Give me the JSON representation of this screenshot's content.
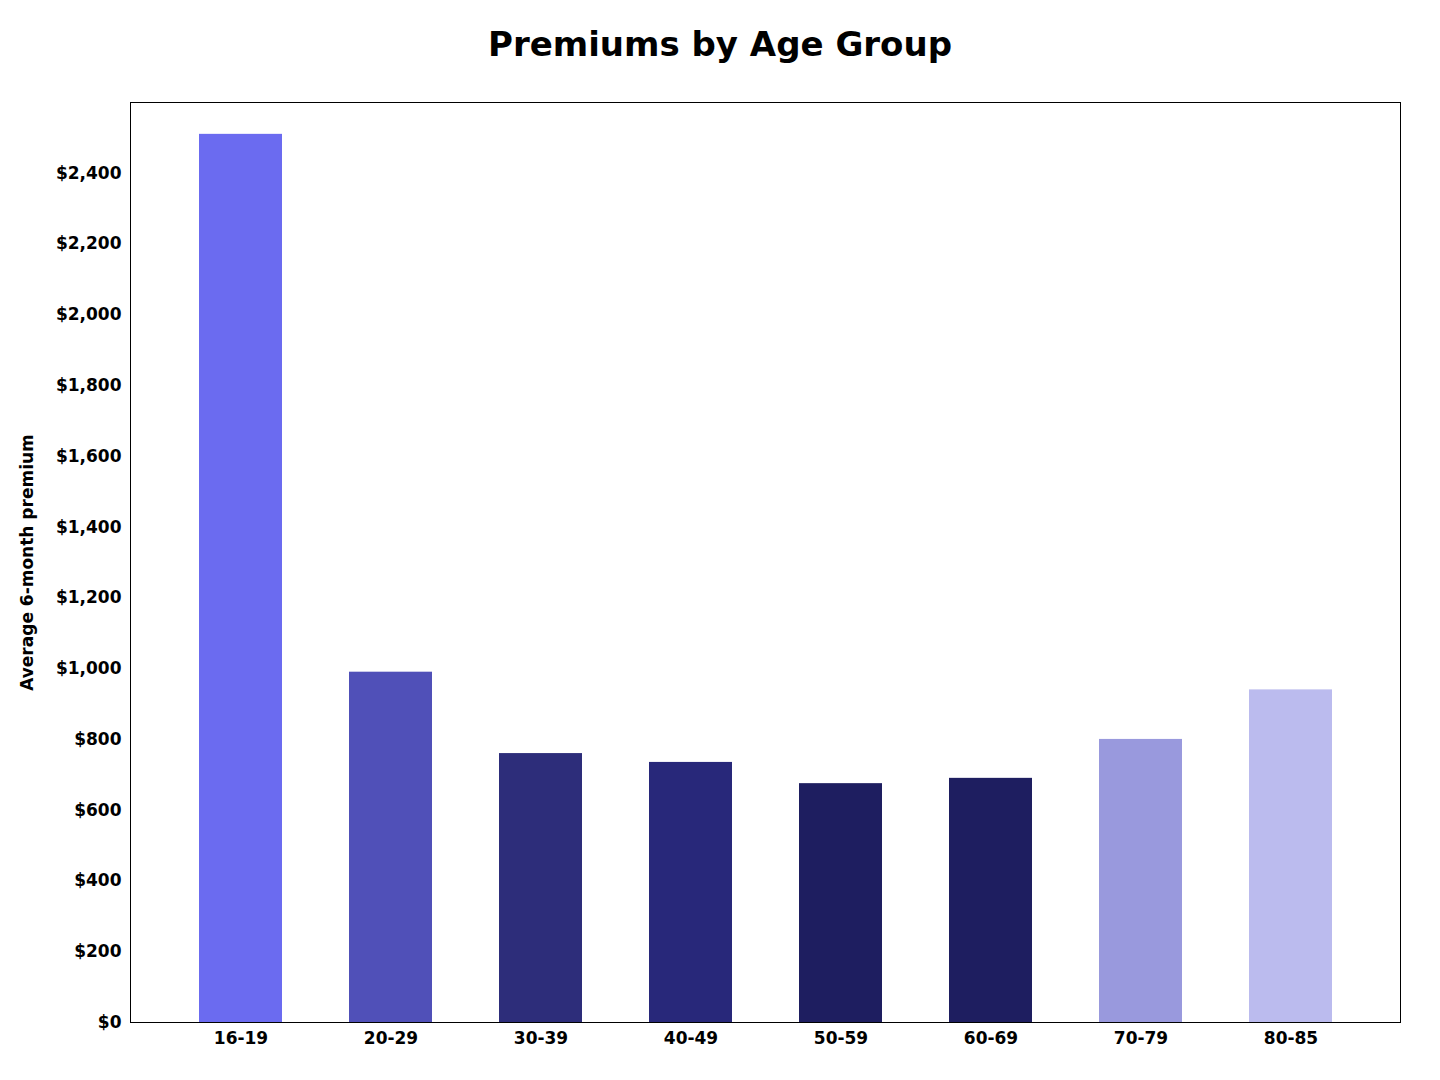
{
  "chart_data": {
    "type": "bar",
    "title": "Premiums by Age Group",
    "categories": [
      "16-19",
      "20-29",
      "30-39",
      "40-49",
      "50-59",
      "60-69",
      "70-79",
      "80-85"
    ],
    "values": [
      2510,
      990,
      760,
      735,
      675,
      690,
      800,
      940
    ],
    "colors": [
      "#6B6BF0",
      "#5050B8",
      "#2D2D7A",
      "#28287A",
      "#1E1E60",
      "#1E1E60",
      "#9999DD",
      "#BBBBEE"
    ],
    "ylabel": "Average 6-month premium",
    "ylim": [
      0,
      2600
    ],
    "yticks": [
      {
        "value": 0,
        "label": "$0"
      },
      {
        "value": 200,
        "label": "$200"
      },
      {
        "value": 400,
        "label": "$400"
      },
      {
        "value": 600,
        "label": "$600"
      },
      {
        "value": 800,
        "label": "$800"
      },
      {
        "value": 1000,
        "label": "$1,000"
      },
      {
        "value": 1200,
        "label": "$1,200"
      },
      {
        "value": 1400,
        "label": "$1,400"
      },
      {
        "value": 1600,
        "label": "$1,600"
      },
      {
        "value": 1800,
        "label": "$1,800"
      },
      {
        "value": 2000,
        "label": "$2,000"
      },
      {
        "value": 2200,
        "label": "$2,200"
      },
      {
        "value": 2400,
        "label": "$2,400"
      }
    ],
    "grid": false
  }
}
